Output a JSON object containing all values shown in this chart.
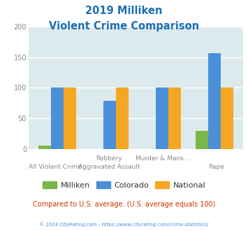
{
  "title_line1": "2019 Milliken",
  "title_line2": "Violent Crime Comparison",
  "title_color": "#1a6eb5",
  "milliken": [
    5,
    0,
    0,
    30
  ],
  "colorado": [
    101,
    79,
    100,
    157
  ],
  "national": [
    100,
    101,
    101,
    100
  ],
  "bar_colors": {
    "milliken": "#7ab648",
    "colorado": "#4a90d9",
    "national": "#f5a623"
  },
  "ylim": [
    0,
    200
  ],
  "yticks": [
    0,
    50,
    100,
    150,
    200
  ],
  "background_color": "#ddeaed",
  "top_labels": [
    "",
    "Robbery",
    "Murder & Mans...",
    ""
  ],
  "bottom_labels": [
    "All Violent Crime",
    "Aggravated Assault",
    "",
    "Rape"
  ],
  "footer_text": "Compared to U.S. average. (U.S. average equals 100)",
  "footer_color": "#cc3300",
  "copyright_text": "© 2024 CityRating.com - https://www.cityrating.com/crime-statistics/",
  "copyright_color": "#4a90d9",
  "legend_labels": [
    "Milliken",
    "Colorado",
    "National"
  ]
}
